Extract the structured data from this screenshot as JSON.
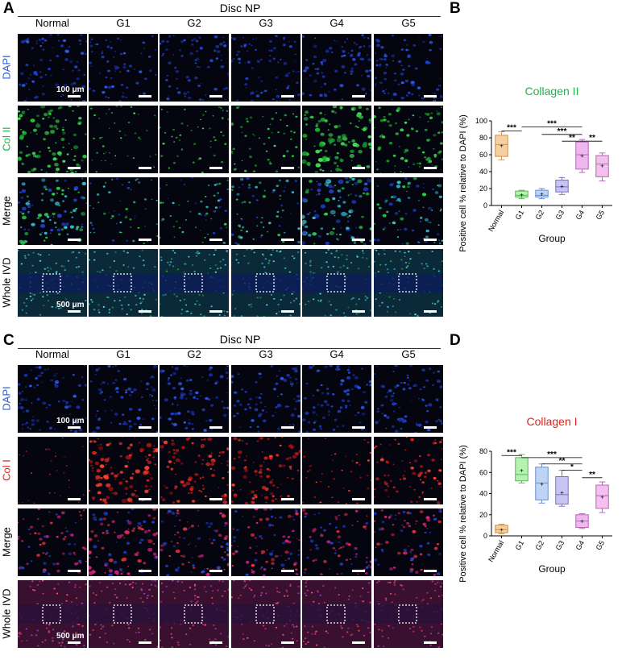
{
  "panels": {
    "A": "A",
    "B": "B",
    "C": "C",
    "D": "D"
  },
  "disc_np_title": "Disc NP",
  "groups": [
    "Normal",
    "G1",
    "G2",
    "G3",
    "G4",
    "G5"
  ],
  "row_labels_top": [
    "DAPI",
    "Col II",
    "Merge",
    "Whole IVD"
  ],
  "row_labels_bottom": [
    "DAPI",
    "Col I",
    "Merge",
    "Whole IVD"
  ],
  "scale_small": "100 μm",
  "scale_large": "500 μm",
  "colors": {
    "dapi": "#2a5bd7",
    "col2": "#22b04a",
    "col1": "#e0201a",
    "merge_text": "#000000"
  },
  "chart_data": [
    {
      "type": "box",
      "title": "Collagen II",
      "title_color": "#22b04a",
      "xlabel": "Group",
      "ylabel": "Positive cell % relative to DAPI (%)",
      "ylim": [
        0,
        100
      ],
      "yticks": [
        "0",
        "20",
        "40",
        "60",
        "80",
        "100"
      ],
      "categories": [
        "Normal",
        "G1",
        "G2",
        "G3",
        "G4",
        "G5"
      ],
      "box_colors": [
        "#f6cfa0",
        "#b6f0b3",
        "#bdd4f5",
        "#c9c3f3",
        "#eeb8ee",
        "#f3c0ef"
      ],
      "stroke_colors": [
        "#c9924e",
        "#5cb45c",
        "#6a8fd0",
        "#7a6fd0",
        "#b667b6",
        "#b667b6"
      ],
      "min": [
        54,
        8,
        8,
        13,
        39,
        29
      ],
      "q1": [
        58,
        10,
        10,
        16,
        43,
        34
      ],
      "median": [
        72,
        12,
        12,
        22,
        60,
        49
      ],
      "q3": [
        83,
        17,
        18,
        30,
        75,
        59
      ],
      "max": [
        87,
        18,
        20,
        33,
        78,
        62
      ],
      "mean": [
        71,
        13,
        14,
        23,
        59,
        47
      ],
      "sig": [
        {
          "label": "***",
          "from": 0,
          "to": 1,
          "y": 88
        },
        {
          "label": "***",
          "from": 1,
          "to": 4,
          "y": 93
        },
        {
          "label": "***",
          "from": 2,
          "to": 4,
          "y": 84
        },
        {
          "label": "**",
          "from": 3,
          "to": 4,
          "y": 76
        },
        {
          "label": "**",
          "from": 4,
          "to": 5,
          "y": 76
        }
      ]
    },
    {
      "type": "box",
      "title": "Collagen I",
      "title_color": "#e0201a",
      "xlabel": "Group",
      "ylabel": "Positive cell % relative to DAPI (%)",
      "ylim": [
        0,
        80
      ],
      "yticks": [
        "0",
        "20",
        "40",
        "60",
        "80"
      ],
      "categories": [
        "Normal",
        "G1",
        "G2",
        "G3",
        "G4",
        "G5"
      ],
      "box_colors": [
        "#f6cfa0",
        "#b6f0b3",
        "#bdd4f5",
        "#c9c3f3",
        "#eeb8ee",
        "#f3c0ef"
      ],
      "stroke_colors": [
        "#c9924e",
        "#5cb45c",
        "#6a8fd0",
        "#7a6fd0",
        "#b667b6",
        "#b667b6"
      ],
      "min": [
        2,
        50,
        31,
        28,
        7,
        22
      ],
      "q1": [
        3,
        52,
        34,
        30,
        8,
        26
      ],
      "median": [
        6,
        58,
        50,
        39,
        14,
        38
      ],
      "q3": [
        10,
        74,
        65,
        56,
        20,
        48
      ],
      "max": [
        11,
        77,
        68,
        62,
        21,
        51
      ],
      "mean": [
        6,
        62,
        49,
        41,
        14,
        37
      ],
      "sig": [
        {
          "label": "***",
          "from": 0,
          "to": 1,
          "y": 76
        },
        {
          "label": "***",
          "from": 1,
          "to": 4,
          "y": 74
        },
        {
          "label": "**",
          "from": 2,
          "to": 4,
          "y": 68
        },
        {
          "label": "*",
          "from": 3,
          "to": 4,
          "y": 62
        },
        {
          "label": "**",
          "from": 4,
          "to": 5,
          "y": 55
        }
      ]
    }
  ]
}
